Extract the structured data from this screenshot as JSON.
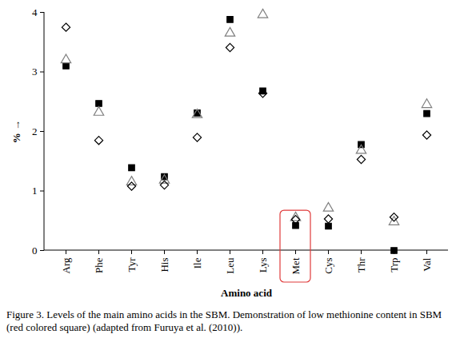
{
  "chart_data": {
    "type": "scatter",
    "caption": "Figure 3. Levels of the main amino acids in the SBM. Demonstration of low methionine content in SBM (red colored square) (adapted from Furuya et al. (2010)).",
    "x_label": "Amino acid",
    "y_label": "%",
    "categories": [
      "Arg",
      "Phe",
      "Tyr",
      "His",
      "Ile",
      "Leu",
      "Lys",
      "Met",
      "Cys",
      "Thr",
      "Trp",
      "Val"
    ],
    "series": [
      {
        "marker": "filled_square",
        "color": "#000000",
        "values": [
          3.1,
          2.47,
          1.39,
          1.24,
          2.31,
          3.88,
          2.68,
          0.42,
          0.41,
          1.78,
          0.0,
          2.3
        ]
      },
      {
        "marker": "open_triangle",
        "color": "#7f7f7f",
        "values": [
          3.2,
          2.32,
          1.15,
          1.18,
          2.28,
          3.65,
          3.96,
          0.55,
          0.71,
          1.68,
          0.48,
          2.45
        ]
      },
      {
        "marker": "open_diamond",
        "color": "#000000",
        "values": [
          3.75,
          1.85,
          1.08,
          1.1,
          1.9,
          3.41,
          2.64,
          0.52,
          0.53,
          1.53,
          0.56,
          1.94
        ]
      }
    ],
    "highlight": {
      "category": "Met",
      "color": "#e03a3a"
    },
    "ylim": [
      0,
      4
    ],
    "yticks": [
      0,
      1,
      2,
      3,
      4
    ],
    "grid": false
  }
}
